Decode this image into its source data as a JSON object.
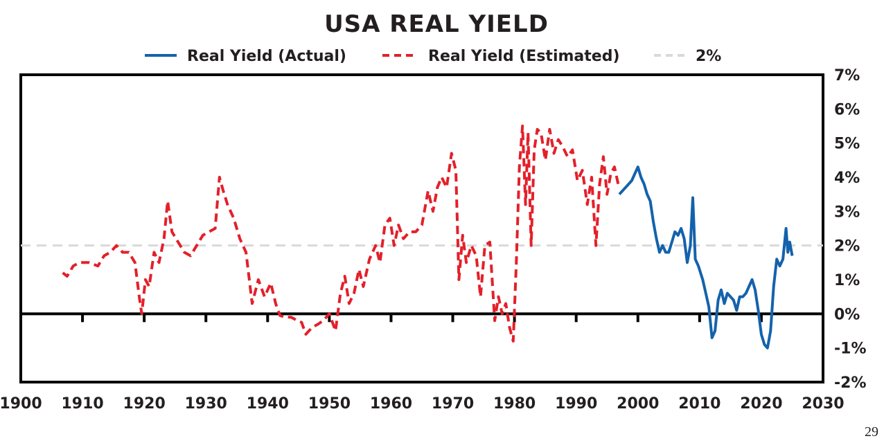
{
  "page_number": "29",
  "chart_data": {
    "type": "line",
    "title": "USA REAL YIELD",
    "xlabel": "",
    "ylabel": "",
    "xlim": [
      1900,
      2030
    ],
    "ylim": [
      -2,
      7
    ],
    "x_ticks": [
      "1900",
      "1910",
      "1920",
      "1930",
      "1940",
      "1950",
      "1960",
      "1970",
      "1980",
      "1990",
      "2000",
      "2010",
      "2020",
      "2030"
    ],
    "y_ticks": [
      "7%",
      "6%",
      "5%",
      "4%",
      "3%",
      "2%",
      "1%",
      "0%",
      "-1%",
      "-2%"
    ],
    "legend_position": "top-center",
    "reference_line": {
      "name": "2%",
      "value": 2,
      "color": "#d9d9d9"
    },
    "series": [
      {
        "name": "Real Yield (Estimated)",
        "style": "dashed",
        "color": "#e3202a",
        "x": [
          1906.8,
          1907.5,
          1908.5,
          1909.5,
          1911,
          1912.5,
          1913.5,
          1914.5,
          1915.5,
          1916.5,
          1917.5,
          1918.5,
          1919.2,
          1919.6,
          1920.2,
          1920.8,
          1921.6,
          1922.4,
          1923.2,
          1923.8,
          1924.5,
          1925.5,
          1926.5,
          1927.5,
          1928.5,
          1929.5,
          1930.5,
          1931.5,
          1932.2,
          1932.8,
          1933.5,
          1934.5,
          1935.5,
          1936.5,
          1937.5,
          1938.5,
          1939.5,
          1940.5,
          1941.3,
          1942,
          1942.8,
          1943.8,
          1944.8,
          1945.5,
          1946.2,
          1947.2,
          1948.2,
          1949,
          1950,
          1951,
          1951.8,
          1952.5,
          1953.2,
          1954,
          1954.8,
          1955.5,
          1956.5,
          1957.5,
          1958.2,
          1959,
          1959.8,
          1960.5,
          1961.2,
          1962,
          1963,
          1964,
          1965,
          1966,
          1966.8,
          1967.5,
          1968.2,
          1969,
          1969.8,
          1970.5,
          1971,
          1971.6,
          1972.2,
          1973,
          1973.8,
          1974.5,
          1975.2,
          1976,
          1976.8,
          1977.4,
          1978,
          1978.6,
          1979.2,
          1979.8,
          1980.3,
          1980.8,
          1981.3,
          1981.8,
          1982.2,
          1982.7,
          1983.2,
          1983.7,
          1984.3,
          1985,
          1985.7,
          1986.4,
          1987.1,
          1987.8,
          1988.6,
          1989.4,
          1990.2,
          1991,
          1991.8,
          1992.5,
          1993.2,
          1993.8,
          1994.4,
          1995,
          1995.6,
          1996.2,
          1996.8
        ],
        "values": [
          1.2,
          1.1,
          1.4,
          1.5,
          1.5,
          1.4,
          1.7,
          1.8,
          2.0,
          1.8,
          1.8,
          1.5,
          0.5,
          0.0,
          1.0,
          0.8,
          1.8,
          1.5,
          2.2,
          3.3,
          2.4,
          2.1,
          1.8,
          1.7,
          2.0,
          2.3,
          2.4,
          2.5,
          4.0,
          3.6,
          3.2,
          2.8,
          2.2,
          1.8,
          0.3,
          1.0,
          0.5,
          0.9,
          0.3,
          -0.05,
          -0.1,
          -0.1,
          -0.2,
          -0.25,
          -0.6,
          -0.4,
          -0.3,
          -0.2,
          0.0,
          -0.5,
          0.6,
          1.1,
          0.3,
          0.6,
          1.3,
          0.8,
          1.6,
          2.0,
          1.5,
          2.6,
          2.8,
          2.0,
          2.6,
          2.2,
          2.4,
          2.4,
          2.6,
          3.6,
          3.0,
          3.7,
          4.0,
          3.7,
          4.7,
          4.2,
          1.0,
          2.3,
          1.5,
          2.0,
          1.7,
          0.5,
          2.0,
          2.1,
          -0.2,
          0.5,
          0.0,
          0.3,
          -0.4,
          -0.8,
          1.5,
          4.3,
          5.5,
          3.2,
          5.3,
          2.0,
          4.8,
          5.4,
          5.3,
          4.5,
          5.4,
          4.7,
          5.1,
          4.9,
          4.6,
          4.8,
          3.9,
          4.2,
          3.2,
          4.0,
          2.0,
          3.8,
          4.6,
          3.5,
          4.1,
          4.3,
          3.8
        ]
      },
      {
        "name": "Real Yield (Actual)",
        "style": "solid",
        "color": "#1462ac",
        "x": [
          1997,
          1997.5,
          1998,
          1998.5,
          1999,
          1999.5,
          2000,
          2000.5,
          2001,
          2001.5,
          2002,
          2002.5,
          2003,
          2003.5,
          2004,
          2004.5,
          2005,
          2005.5,
          2006,
          2006.5,
          2007,
          2007.5,
          2008,
          2008.5,
          2008.9,
          2009.3,
          2009.8,
          2010.5,
          2011,
          2011.5,
          2012,
          2012.5,
          2013,
          2013.5,
          2014,
          2014.5,
          2015,
          2015.5,
          2016,
          2016.5,
          2017,
          2017.5,
          2018,
          2018.5,
          2019,
          2019.5,
          2020,
          2020.5,
          2021,
          2021.5,
          2022,
          2022.5,
          2023,
          2023.5,
          2024,
          2024.3,
          2024.6,
          2025
        ],
        "values": [
          3.5,
          3.6,
          3.7,
          3.8,
          3.9,
          4.1,
          4.3,
          4.0,
          3.8,
          3.5,
          3.3,
          2.7,
          2.2,
          1.8,
          2.0,
          1.8,
          1.8,
          2.1,
          2.4,
          2.3,
          2.5,
          2.2,
          1.5,
          2.0,
          3.4,
          1.6,
          1.4,
          1.0,
          0.6,
          0.2,
          -0.7,
          -0.5,
          0.4,
          0.7,
          0.3,
          0.6,
          0.5,
          0.4,
          0.1,
          0.5,
          0.5,
          0.6,
          0.8,
          1.0,
          0.7,
          0.1,
          -0.6,
          -0.9,
          -1.0,
          -0.5,
          0.8,
          1.6,
          1.4,
          1.6,
          2.5,
          1.8,
          2.1,
          1.7
        ]
      }
    ]
  }
}
